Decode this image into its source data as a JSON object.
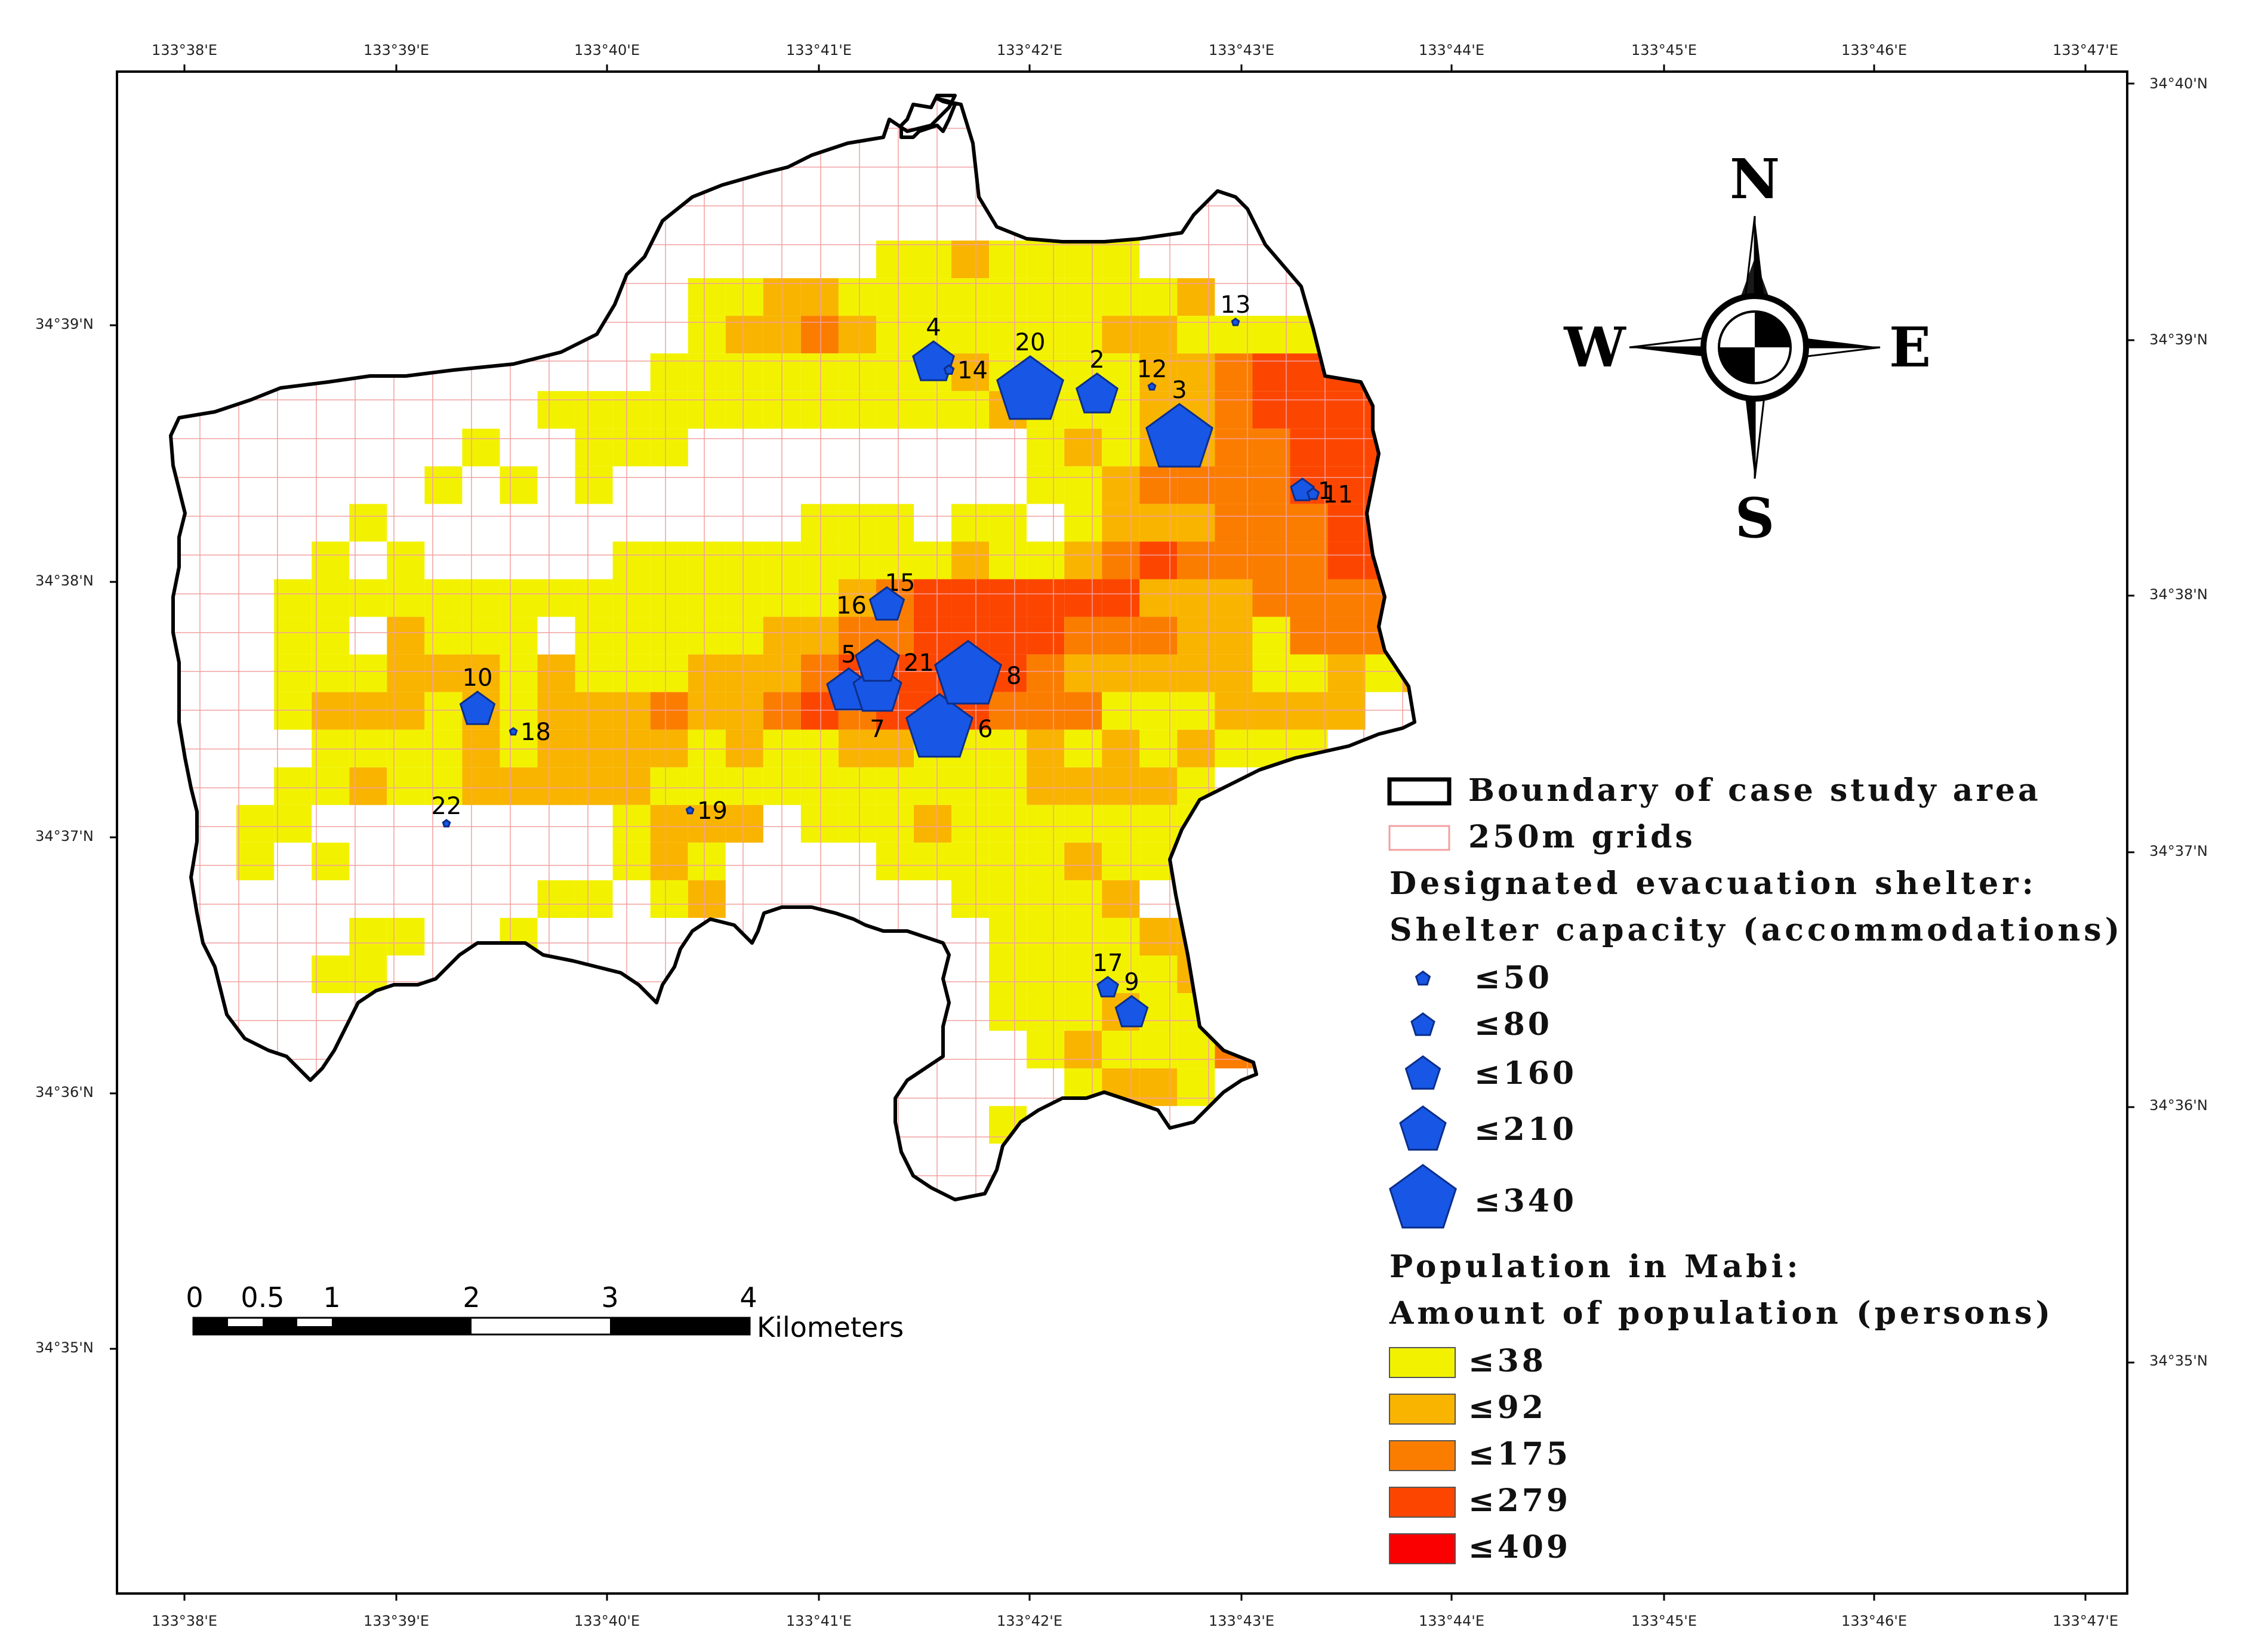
{
  "map": {
    "longitude_ticks": [
      "133°38'E",
      "133°39'E",
      "133°40'E",
      "133°41'E",
      "133°42'E",
      "133°43'E",
      "133°44'E",
      "133°45'E",
      "133°46'E",
      "133°47'E"
    ],
    "latitude_ticks_left": [
      "34°39'N",
      "34°38'N",
      "34°37'N",
      "34°36'N",
      "34°35'N"
    ],
    "latitude_ticks_right": [
      "34°40'N",
      "34°39'N",
      "34°38'N",
      "34°37'N",
      "34°36'N",
      "34°35'N"
    ]
  },
  "compass": {
    "north": "N",
    "south": "S",
    "east": "E",
    "west": "W"
  },
  "scale_bar": {
    "ticks": [
      "0",
      "0.5",
      "1",
      "2",
      "3",
      "4"
    ],
    "unit": "Kilometers"
  },
  "legend": {
    "boundary": "Boundary of case study area",
    "grids": "250m grids",
    "shelter_title": "Designated evacuation shelter:",
    "shelter_subtitle": "Shelter capacity (accommodations)",
    "shelter_classes": [
      "≤50",
      "≤80",
      "≤160",
      "≤210",
      "≤340"
    ],
    "population_title": "Population in Mabi:",
    "population_subtitle": "Amount of population (persons)",
    "population_classes": [
      {
        "label": "≤38",
        "color": "#f2f200"
      },
      {
        "label": "≤92",
        "color": "#f9b400"
      },
      {
        "label": "≤175",
        "color": "#fb7d00"
      },
      {
        "label": "≤279",
        "color": "#fc4600"
      },
      {
        "label": "≤409",
        "color": "#fb0000"
      }
    ]
  },
  "colors": {
    "shelter_fill": "#1857e5",
    "grid_line": "#f2a0a0",
    "boundary": "#000000"
  },
  "shelters": [
    {
      "id": "1",
      "capacity_class": 2
    },
    {
      "id": "2",
      "capacity_class": 3
    },
    {
      "id": "3",
      "capacity_class": 5
    },
    {
      "id": "4",
      "capacity_class": 3
    },
    {
      "id": "5",
      "capacity_class": 3
    },
    {
      "id": "6",
      "capacity_class": 5
    },
    {
      "id": "7",
      "capacity_class": 3
    },
    {
      "id": "8",
      "capacity_class": 5
    },
    {
      "id": "9",
      "capacity_class": 2
    },
    {
      "id": "10",
      "capacity_class": 3
    },
    {
      "id": "11",
      "capacity_class": 1
    },
    {
      "id": "12",
      "capacity_class": 1
    },
    {
      "id": "13",
      "capacity_class": 1
    },
    {
      "id": "14",
      "capacity_class": 1
    },
    {
      "id": "15",
      "capacity_class": 1
    },
    {
      "id": "16",
      "capacity_class": 3
    },
    {
      "id": "17",
      "capacity_class": 1
    },
    {
      "id": "18",
      "capacity_class": 1
    },
    {
      "id": "19",
      "capacity_class": 1
    },
    {
      "id": "20",
      "capacity_class": 5
    },
    {
      "id": "21",
      "capacity_class": 3
    },
    {
      "id": "22",
      "capacity_class": 1
    }
  ]
}
